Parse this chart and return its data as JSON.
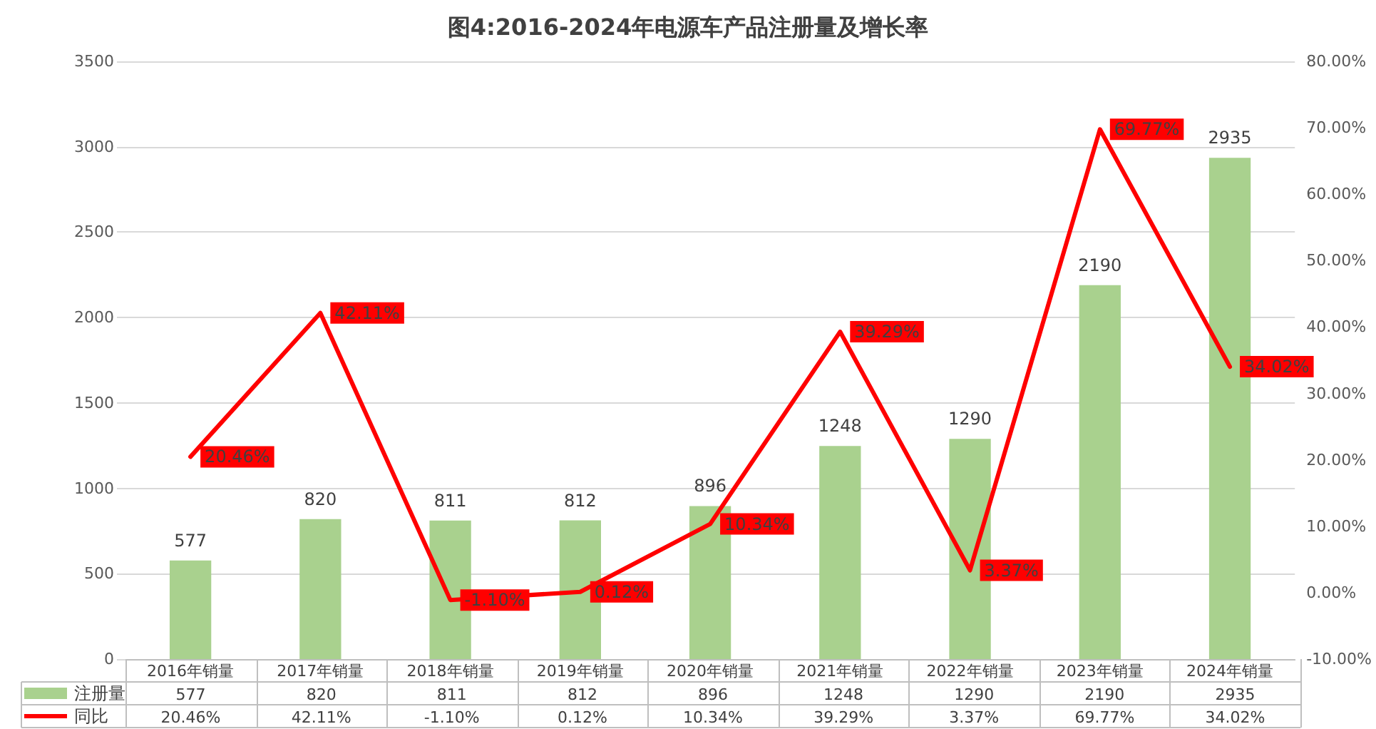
{
  "chart_data": {
    "type": "bar",
    "title": "图4:2016-2024年电源车产品注册量及增长率",
    "categories": [
      "2016年销量",
      "2017年销量",
      "2018年销量",
      "2019年销量",
      "2020年销量",
      "2021年销量",
      "2022年销量",
      "2023年销量",
      "2024年销量"
    ],
    "series": [
      {
        "name": "注册量",
        "color": "#a9d18e",
        "values": [
          577,
          820,
          811,
          812,
          896,
          1248,
          1290,
          2190,
          2935
        ],
        "value_labels": [
          "577",
          "820",
          "811",
          "812",
          "896",
          "1248",
          "1290",
          "2190",
          "2935"
        ]
      },
      {
        "name": "同比",
        "type": "line",
        "axis": "y2",
        "color": "#ff0000",
        "values": [
          20.46,
          42.11,
          -1.1,
          0.12,
          10.34,
          39.29,
          3.37,
          69.77,
          34.02
        ],
        "value_labels": [
          "20.46%",
          "42.11%",
          "-1.10%",
          "0.12%",
          "10.34%",
          "39.29%",
          "3.37%",
          "69.77%",
          "34.02%"
        ]
      }
    ],
    "ylim": [
      0,
      3500
    ],
    "yticks": [
      0,
      500,
      1000,
      1500,
      2000,
      2500,
      3000,
      3500
    ],
    "y2lim": [
      -10,
      80
    ],
    "y2ticks": [
      {
        "value": -10,
        "label": "-10.00%"
      },
      {
        "value": 0,
        "label": "0.00%"
      },
      {
        "value": 10,
        "label": "10.00%"
      },
      {
        "value": 20,
        "label": "20.00%"
      },
      {
        "value": 30,
        "label": "30.00%"
      },
      {
        "value": 40,
        "label": "40.00%"
      },
      {
        "value": 50,
        "label": "50.00%"
      },
      {
        "value": 60,
        "label": "60.00%"
      },
      {
        "value": 70,
        "label": "70.00%"
      },
      {
        "value": 80,
        "label": "80.00%"
      }
    ],
    "grid": "y",
    "legend": "bottom left",
    "marker": "none",
    "line_style": "solid"
  }
}
